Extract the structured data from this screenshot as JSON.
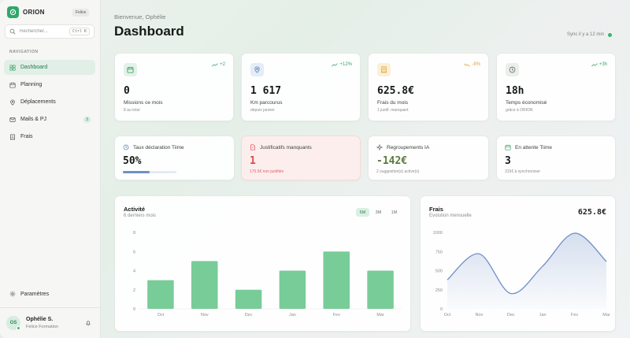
{
  "brand": {
    "name": "ORION",
    "workspace": "Felice"
  },
  "search": {
    "placeholder": "Rechercher...",
    "shortcut": "Ctrl K"
  },
  "nav": {
    "section_title": "NAVIGATION",
    "items": [
      {
        "label": "Dashboard",
        "icon": "home-icon",
        "active": true
      },
      {
        "label": "Planning",
        "icon": "calendar-icon"
      },
      {
        "label": "Déplacements",
        "icon": "map-pin-icon"
      },
      {
        "label": "Mails & PJ",
        "icon": "mail-icon",
        "badge": "3"
      },
      {
        "label": "Frais",
        "icon": "receipt-icon"
      }
    ],
    "settings_label": "Paramètres"
  },
  "user": {
    "initials": "OS",
    "name": "Ophélie S.",
    "org": "Felice Formation"
  },
  "header": {
    "greeting": "Bienvenue, Ophélie",
    "title": "Dashboard",
    "sync": "Sync il y a 12 min"
  },
  "stats": [
    {
      "value": "0",
      "label": "Missions ce mois",
      "sub": "8 au total",
      "trend": "+2",
      "trend_color": "#3aa36a",
      "icon": "calendar-icon",
      "icon_bg": "#e3f2e8",
      "icon_color": "#2f9a60"
    },
    {
      "value": "1 617",
      "label": "Km parcourus",
      "sub": "depuis janvier",
      "trend": "+12%",
      "trend_color": "#3aa36a",
      "icon": "map-pin-icon",
      "icon_bg": "#e4ecf7",
      "icon_color": "#5b7fb8"
    },
    {
      "value": "625.8€",
      "label": "Frais du mois",
      "sub": "1 justif. manquant",
      "trend": "-8%",
      "trend_color": "#e0a32e",
      "icon": "receipt-icon",
      "icon_bg": "#fbf0d6",
      "icon_color": "#d99a1c"
    },
    {
      "value": "18h",
      "label": "Temps économisé",
      "sub": "grâce à ORION",
      "trend": "+3h",
      "trend_color": "#3aa36a",
      "icon": "clock-icon",
      "icon_bg": "#eceeeb",
      "icon_color": "#6b706c"
    }
  ],
  "minis": [
    {
      "label": "Taux déclaration Tiime",
      "value": "50%",
      "progress": 0.5,
      "icon": "clock-icon",
      "color": "#151a17",
      "icon_color": "#5b7fb8"
    },
    {
      "label": "Justificatifs manquants",
      "value": "1",
      "sub": "175.5€ non justifiés",
      "icon": "file-alert-icon",
      "color": "#e04848",
      "sub_color": "#e06060",
      "icon_color": "#e04848"
    },
    {
      "label": "Regroupements IA",
      "value": "-142€",
      "sub": "2 suggestion(s) active(s)",
      "icon": "sparkle-icon",
      "color": "#5d7a3c",
      "icon_color": "#555a56"
    },
    {
      "label": "En attente Tiime",
      "value": "3",
      "sub": "315€ à synchroniser",
      "icon": "calendar-icon",
      "color": "#151a17",
      "icon_color": "#3aa36a"
    }
  ],
  "activity": {
    "title": "Activité",
    "subtitle": "6 derniers mois",
    "ranges": [
      "6M",
      "3M",
      "1M"
    ],
    "active_range": "6M"
  },
  "frais": {
    "title": "Frais",
    "subtitle": "Evolution mensuelle",
    "total": "625.8€"
  },
  "chart_data": [
    {
      "type": "bar",
      "title": "Activité",
      "subtitle": "6 derniers mois",
      "categories": [
        "Oct",
        "Nov",
        "Dec",
        "Jan",
        "Fev",
        "Mar"
      ],
      "values": [
        3,
        5,
        2,
        4,
        6,
        4
      ],
      "ylim": [
        0,
        8
      ],
      "yticks": [
        0,
        2,
        4,
        6,
        8
      ],
      "color": "#78cc98",
      "grid": false
    },
    {
      "type": "area",
      "title": "Frais",
      "subtitle": "Evolution mensuelle",
      "categories": [
        "Oct",
        "Nov",
        "Dec",
        "Jan",
        "Fev",
        "Mar"
      ],
      "values": [
        380,
        720,
        200,
        560,
        990,
        620
      ],
      "ylim": [
        0,
        1000
      ],
      "yticks": [
        0,
        250,
        500,
        750,
        1000
      ],
      "color": "#6f8fc7",
      "grid": false
    }
  ]
}
